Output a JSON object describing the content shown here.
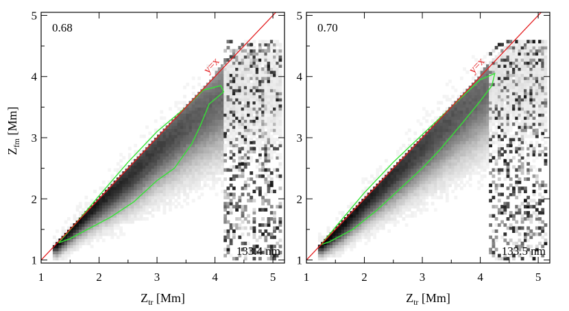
{
  "chart_data": [
    {
      "type": "scatter",
      "subtype": "2d-histogram with contour",
      "correlation_label": "0.68",
      "wavelength_label": "133.4 nm",
      "diagonal_label": "y=x",
      "xlabel": {
        "main": "Z",
        "sub": "tr",
        "unit": " [Mm]"
      },
      "ylabel": {
        "main": "Z",
        "sub": "fm",
        "unit": " [Mm]"
      },
      "xlim": [
        1,
        5.2
      ],
      "ylim": [
        0.95,
        5.05
      ],
      "xticks": [
        "1",
        "2",
        "3",
        "4",
        "5"
      ],
      "yticks": [
        "1",
        "2",
        "3",
        "4",
        "5"
      ],
      "ridge": [
        [
          1.25,
          1.25
        ],
        [
          1.6,
          1.6
        ],
        [
          2.0,
          1.95
        ],
        [
          2.5,
          2.35
        ],
        [
          3.0,
          2.8
        ],
        [
          3.5,
          3.2
        ],
        [
          4.0,
          3.55
        ],
        [
          4.3,
          3.7
        ]
      ],
      "contour": [
        [
          1.3,
          1.28
        ],
        [
          1.6,
          1.6
        ],
        [
          2.0,
          2.05
        ],
        [
          2.5,
          2.6
        ],
        [
          3.0,
          3.1
        ],
        [
          3.5,
          3.5
        ],
        [
          3.8,
          3.78
        ],
        [
          4.1,
          3.85
        ],
        [
          4.15,
          3.75
        ],
        [
          3.9,
          3.55
        ],
        [
          3.75,
          3.2
        ],
        [
          3.6,
          2.9
        ],
        [
          3.3,
          2.5
        ],
        [
          3.0,
          2.3
        ],
        [
          2.6,
          1.95
        ],
        [
          2.2,
          1.7
        ],
        [
          1.9,
          1.55
        ],
        [
          1.5,
          1.35
        ],
        [
          1.3,
          1.28
        ]
      ],
      "colors": {
        "diagonal": "#e31a1c",
        "contour": "#33e633",
        "histogram": "#000000"
      }
    },
    {
      "type": "scatter",
      "subtype": "2d-histogram with contour",
      "correlation_label": "0.70",
      "wavelength_label": "133.5 nm",
      "diagonal_label": "y=x",
      "xlabel": {
        "main": "Z",
        "sub": "tr",
        "unit": " [Mm]"
      },
      "ylabel": {
        "main": "",
        "sub": "",
        "unit": ""
      },
      "xlim": [
        1,
        5.2
      ],
      "ylim": [
        0.95,
        5.05
      ],
      "xticks": [
        "1",
        "2",
        "3",
        "4",
        "5"
      ],
      "yticks": [
        "1",
        "2",
        "3",
        "4",
        "5"
      ],
      "ridge": [
        [
          1.25,
          1.25
        ],
        [
          1.6,
          1.55
        ],
        [
          2.0,
          1.95
        ],
        [
          2.5,
          2.4
        ],
        [
          3.0,
          2.85
        ],
        [
          3.5,
          3.3
        ],
        [
          4.0,
          3.7
        ],
        [
          4.2,
          3.9
        ]
      ],
      "contour": [
        [
          1.25,
          1.25
        ],
        [
          1.6,
          1.65
        ],
        [
          2.0,
          2.1
        ],
        [
          2.5,
          2.6
        ],
        [
          3.0,
          3.05
        ],
        [
          3.5,
          3.5
        ],
        [
          4.0,
          3.95
        ],
        [
          4.25,
          4.05
        ],
        [
          4.2,
          3.85
        ],
        [
          4.0,
          3.6
        ],
        [
          3.7,
          3.25
        ],
        [
          3.3,
          2.8
        ],
        [
          3.0,
          2.5
        ],
        [
          2.6,
          2.15
        ],
        [
          2.2,
          1.8
        ],
        [
          1.8,
          1.5
        ],
        [
          1.4,
          1.3
        ],
        [
          1.25,
          1.25
        ]
      ],
      "colors": {
        "diagonal": "#e31a1c",
        "contour": "#33e633",
        "histogram": "#000000"
      }
    }
  ]
}
